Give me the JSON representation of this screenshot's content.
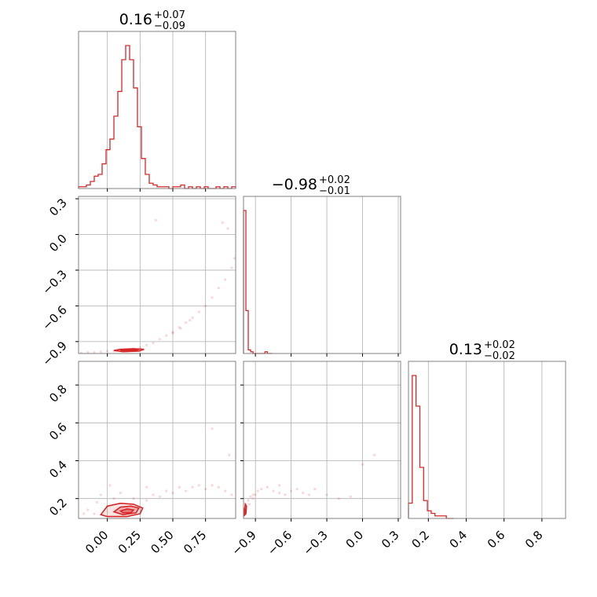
{
  "chart_data": {
    "type": "corner",
    "color": "#d62728",
    "parameters": [
      {
        "index": 0,
        "title": {
          "median": "0.16",
          "upper": "+0.07",
          "lower": "−0.09"
        }
      },
      {
        "index": 1,
        "title": {
          "median": "−0.98",
          "upper": "+0.02",
          "lower": "−0.01"
        }
      },
      {
        "index": 2,
        "title": {
          "median": "0.13",
          "upper": "+0.02",
          "lower": "−0.02"
        }
      }
    ],
    "axes": [
      {
        "range": [
          -0.22,
          0.98
        ],
        "ticks": [
          0.0,
          0.25,
          0.5,
          0.75
        ],
        "tick_labels": [
          "0.00",
          "0.25",
          "0.50",
          "0.75"
        ]
      },
      {
        "range": [
          -1.0,
          0.32
        ],
        "ticks": [
          -0.9,
          -0.6,
          -0.3,
          0.0,
          0.3
        ],
        "tick_labels": [
          "−0.9",
          "−0.6",
          "−0.3",
          "0.0",
          "0.3"
        ]
      },
      {
        "range": [
          0.095,
          0.925
        ],
        "ticks": [
          0.2,
          0.4,
          0.6,
          0.8
        ],
        "tick_labels": [
          "0.2",
          "0.4",
          "0.6",
          "0.8"
        ]
      }
    ],
    "histograms": [
      {
        "param": 0,
        "bin_edges": [
          -0.22,
          -0.19,
          -0.16,
          -0.13,
          -0.1,
          -0.07,
          -0.04,
          -0.01,
          0.02,
          0.05,
          0.08,
          0.11,
          0.14,
          0.17,
          0.2,
          0.23,
          0.26,
          0.29,
          0.32,
          0.35,
          0.38,
          0.41,
          0.44,
          0.47,
          0.5,
          0.53,
          0.56,
          0.59,
          0.62,
          0.65,
          0.68,
          0.71,
          0.74,
          0.77,
          0.8,
          0.83,
          0.86,
          0.89,
          0.92,
          0.95,
          0.98
        ],
        "counts": [
          1,
          1,
          2,
          4,
          7,
          8,
          14,
          22,
          28,
          41,
          55,
          73,
          81,
          73,
          57,
          35,
          17,
          8,
          3,
          2,
          1,
          1,
          1,
          0,
          1,
          1,
          2,
          0,
          1,
          0,
          1,
          0,
          1,
          0,
          0,
          1,
          0,
          1,
          0,
          1
        ]
      },
      {
        "param": 1,
        "bin_edges": [
          -1.0,
          -0.98,
          -0.96,
          -0.94,
          -0.92,
          -0.9,
          -0.88,
          -0.86,
          -0.84,
          -0.82,
          -0.8,
          -0.78,
          -0.76
        ],
        "counts": [
          80,
          24,
          2,
          1,
          0,
          0,
          0,
          0,
          0,
          1,
          0,
          0
        ]
      },
      {
        "param": 2,
        "bin_edges": [
          0.095,
          0.115,
          0.135,
          0.155,
          0.175,
          0.195,
          0.215,
          0.235,
          0.255,
          0.275,
          0.295,
          0.315,
          0.335
        ],
        "counts": [
          6,
          56,
          44,
          20,
          7,
          3,
          2,
          1,
          1,
          1,
          0,
          0
        ]
      }
    ],
    "pair_plots": [
      {
        "x_param": 0,
        "y_param": 1,
        "samples": [
          [
            -0.2,
            -0.995
          ],
          [
            -0.15,
            -0.99
          ],
          [
            -0.1,
            -0.99
          ],
          [
            -0.05,
            -0.985
          ],
          [
            0.0,
            -0.98
          ],
          [
            0.05,
            -0.98
          ],
          [
            0.1,
            -0.975
          ],
          [
            0.15,
            -0.97
          ],
          [
            0.2,
            -0.96
          ],
          [
            0.25,
            -0.95
          ],
          [
            0.3,
            -0.93
          ],
          [
            0.35,
            -0.91
          ],
          [
            0.4,
            -0.88
          ],
          [
            0.45,
            -0.85
          ],
          [
            0.5,
            -0.82
          ],
          [
            0.55,
            -0.78
          ],
          [
            0.6,
            -0.74
          ],
          [
            0.65,
            -0.7
          ],
          [
            0.7,
            -0.65
          ],
          [
            0.75,
            -0.6
          ],
          [
            0.8,
            -0.53
          ],
          [
            0.85,
            -0.45
          ],
          [
            0.9,
            -0.38
          ],
          [
            0.95,
            -0.28
          ],
          [
            0.97,
            -0.2
          ],
          [
            0.88,
            0.1
          ],
          [
            0.92,
            0.05
          ],
          [
            0.37,
            0.12
          ],
          [
            0.5,
            -0.83
          ],
          [
            0.56,
            -0.79
          ],
          [
            0.63,
            -0.72
          ]
        ],
        "contours": [
          {
            "points": [
              [
                0.05,
                -0.975
              ],
              [
                0.1,
                -0.965
              ],
              [
                0.2,
                -0.96
              ],
              [
                0.28,
                -0.965
              ],
              [
                0.24,
                -0.98
              ],
              [
                0.12,
                -0.985
              ],
              [
                0.05,
                -0.975
              ]
            ]
          },
          {
            "points": [
              [
                0.1,
                -0.975
              ],
              [
                0.18,
                -0.968
              ],
              [
                0.24,
                -0.968
              ],
              [
                0.2,
                -0.978
              ],
              [
                0.12,
                -0.98
              ],
              [
                0.1,
                -0.975
              ]
            ]
          }
        ]
      },
      {
        "x_param": 0,
        "y_param": 2,
        "samples": [
          [
            -0.15,
            0.14
          ],
          [
            -0.1,
            0.12
          ],
          [
            -0.08,
            0.18
          ],
          [
            -0.05,
            0.22
          ],
          [
            0.0,
            0.16
          ],
          [
            0.05,
            0.2
          ],
          [
            0.1,
            0.23
          ],
          [
            0.2,
            0.2
          ],
          [
            0.3,
            0.19
          ],
          [
            0.35,
            0.22
          ],
          [
            0.4,
            0.21
          ],
          [
            0.45,
            0.24
          ],
          [
            0.5,
            0.23
          ],
          [
            0.55,
            0.26
          ],
          [
            0.6,
            0.24
          ],
          [
            0.65,
            0.26
          ],
          [
            0.7,
            0.27
          ],
          [
            0.75,
            0.25
          ],
          [
            0.8,
            0.27
          ],
          [
            0.85,
            0.26
          ],
          [
            0.9,
            0.24
          ],
          [
            0.95,
            0.22
          ],
          [
            0.8,
            0.57
          ],
          [
            0.93,
            0.43
          ],
          [
            0.3,
            0.26
          ],
          [
            -0.18,
            0.12
          ],
          [
            0.02,
            0.27
          ]
        ],
        "contours": [
          {
            "points": [
              [
                -0.05,
                0.115
              ],
              [
                0.0,
                0.16
              ],
              [
                0.1,
                0.175
              ],
              [
                0.2,
                0.17
              ],
              [
                0.27,
                0.15
              ],
              [
                0.25,
                0.12
              ],
              [
                0.15,
                0.105
              ],
              [
                0.0,
                0.105
              ],
              [
                -0.05,
                0.115
              ]
            ]
          },
          {
            "points": [
              [
                0.05,
                0.13
              ],
              [
                0.1,
                0.155
              ],
              [
                0.18,
                0.16
              ],
              [
                0.24,
                0.15
              ],
              [
                0.22,
                0.125
              ],
              [
                0.12,
                0.115
              ],
              [
                0.05,
                0.13
              ]
            ]
          },
          {
            "points": [
              [
                0.1,
                0.135
              ],
              [
                0.15,
                0.145
              ],
              [
                0.2,
                0.14
              ],
              [
                0.18,
                0.125
              ],
              [
                0.12,
                0.125
              ],
              [
                0.1,
                0.135
              ]
            ]
          }
        ]
      },
      {
        "x_param": 1,
        "y_param": 2,
        "samples": [
          [
            -0.99,
            0.15
          ],
          [
            -0.98,
            0.17
          ],
          [
            -0.96,
            0.19
          ],
          [
            -0.94,
            0.21
          ],
          [
            -0.92,
            0.2
          ],
          [
            -0.9,
            0.22
          ],
          [
            -0.88,
            0.24
          ],
          [
            -0.85,
            0.25
          ],
          [
            -0.8,
            0.26
          ],
          [
            -0.75,
            0.24
          ],
          [
            -0.7,
            0.23
          ],
          [
            -0.65,
            0.22
          ],
          [
            -0.6,
            0.24
          ],
          [
            -0.55,
            0.25
          ],
          [
            -0.5,
            0.23
          ],
          [
            -0.45,
            0.22
          ],
          [
            -0.4,
            0.25
          ],
          [
            -0.3,
            0.22
          ],
          [
            -0.2,
            0.2
          ],
          [
            -0.1,
            0.21
          ],
          [
            0.0,
            0.38
          ],
          [
            0.1,
            0.43
          ],
          [
            -0.95,
            0.17
          ],
          [
            -0.92,
            0.22
          ],
          [
            -0.7,
            0.27
          ]
        ],
        "contours": [
          {
            "points": [
              [
                -0.995,
                0.11
              ],
              [
                -0.99,
                0.14
              ],
              [
                -0.985,
                0.17
              ],
              [
                -0.975,
                0.16
              ],
              [
                -0.98,
                0.12
              ],
              [
                -0.995,
                0.11
              ]
            ]
          },
          {
            "points": [
              [
                -0.995,
                0.12
              ],
              [
                -0.99,
                0.15
              ],
              [
                -0.985,
                0.14
              ],
              [
                -0.99,
                0.12
              ],
              [
                -0.995,
                0.12
              ]
            ]
          }
        ]
      }
    ]
  }
}
